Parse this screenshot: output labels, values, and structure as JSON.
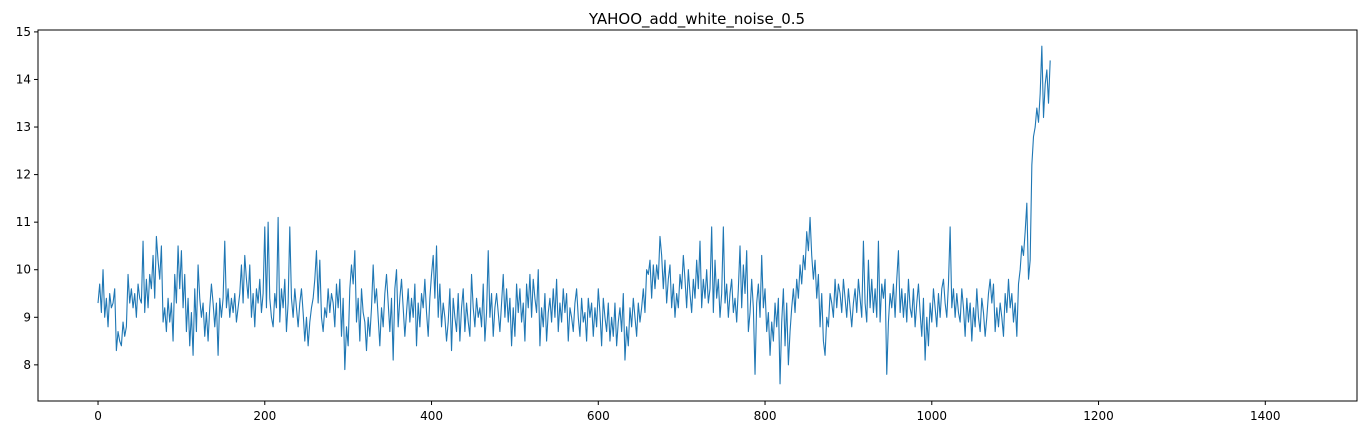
{
  "chart_data": {
    "type": "line",
    "title": "YAHOO_add_white_noise_0.5",
    "xlabel": "",
    "ylabel": "",
    "xlim": [
      -72,
      1510
    ],
    "ylim": [
      7.24,
      15.04
    ],
    "x_ticks": [
      0,
      200,
      400,
      600,
      800,
      1000,
      1200,
      1400
    ],
    "y_ticks": [
      8,
      9,
      10,
      11,
      12,
      13,
      14,
      15
    ],
    "grid": false,
    "legend": "none",
    "colors": {
      "line": "#1f77b4",
      "axes": "#000000",
      "background": "#ffffff"
    },
    "x_start": 0,
    "x_step": 2,
    "series": [
      {
        "values": [
          9.3,
          9.7,
          9.1,
          10.0,
          9.0,
          9.4,
          8.8,
          9.5,
          9.2,
          9.3,
          9.6,
          8.3,
          8.7,
          8.5,
          8.4,
          8.9,
          8.6,
          8.8,
          9.9,
          9.3,
          9.6,
          9.2,
          9.5,
          9.0,
          9.7,
          9.4,
          9.3,
          10.6,
          9.1,
          9.8,
          9.2,
          9.9,
          9.6,
          10.3,
          9.4,
          10.7,
          10.2,
          9.8,
          10.5,
          8.9,
          9.2,
          8.7,
          9.4,
          8.9,
          9.3,
          8.5,
          9.9,
          9.3,
          10.5,
          9.6,
          10.4,
          9.2,
          9.9,
          8.7,
          9.4,
          8.4,
          9.1,
          8.2,
          9.6,
          8.7,
          10.1,
          9.4,
          9.0,
          9.3,
          8.6,
          9.1,
          8.5,
          9.2,
          9.7,
          9.3,
          8.8,
          9.3,
          8.2,
          9.4,
          9.0,
          9.4,
          10.6,
          9.2,
          9.6,
          9.0,
          9.4,
          9.1,
          9.5,
          8.9,
          9.2,
          9.5,
          10.1,
          9.3,
          10.3,
          9.8,
          9.4,
          10.1,
          9.0,
          9.5,
          8.8,
          9.6,
          9.3,
          9.8,
          9.1,
          9.5,
          10.9,
          9.2,
          11.0,
          9.4,
          9.0,
          8.8,
          9.5,
          9.2,
          11.1,
          8.9,
          9.6,
          9.2,
          9.8,
          8.7,
          9.3,
          10.9,
          9.4,
          9.0,
          9.6,
          9.2,
          8.8,
          9.3,
          9.6,
          9.1,
          8.5,
          9.0,
          8.4,
          8.9,
          9.2,
          9.4,
          9.8,
          10.4,
          9.3,
          10.2,
          9.0,
          8.7,
          9.2,
          9.0,
          9.6,
          9.1,
          9.5,
          9.3,
          8.8,
          9.7,
          9.2,
          9.8,
          8.6,
          9.4,
          7.9,
          8.8,
          8.4,
          9.6,
          10.1,
          9.7,
          10.4,
          8.9,
          9.4,
          8.5,
          9.6,
          9.1,
          8.9,
          8.3,
          9.0,
          8.6,
          9.2,
          10.1,
          9.3,
          9.6,
          9.0,
          8.4,
          9.2,
          8.8,
          9.5,
          9.9,
          9.3,
          8.7,
          9.4,
          8.1,
          9.6,
          10.0,
          8.8,
          9.4,
          9.8,
          9.2,
          8.6,
          9.1,
          9.6,
          8.9,
          9.4,
          9.0,
          9.7,
          8.4,
          9.3,
          8.8,
          9.5,
          9.2,
          9.8,
          9.1,
          8.6,
          9.4,
          9.9,
          10.3,
          9.4,
          10.5,
          9.0,
          9.7,
          8.8,
          9.3,
          9.0,
          8.5,
          8.9,
          9.6,
          8.3,
          9.4,
          9.0,
          8.7,
          9.5,
          8.5,
          9.2,
          9.6,
          8.7,
          9.3,
          8.9,
          8.6,
          9.9,
          9.2,
          8.8,
          9.4,
          9.0,
          9.2,
          8.8,
          9.7,
          8.5,
          9.1,
          10.4,
          9.0,
          9.5,
          8.6,
          9.2,
          9.5,
          9.1,
          8.7,
          9.3,
          9.9,
          9.0,
          9.6,
          8.9,
          9.4,
          8.4,
          9.2,
          8.6,
          9.7,
          9.1,
          9.6,
          8.9,
          9.3,
          8.5,
          9.7,
          9.2,
          9.9,
          9.0,
          9.8,
          9.4,
          9.1,
          10.0,
          8.4,
          9.2,
          8.8,
          9.5,
          8.5,
          9.1,
          9.4,
          8.9,
          9.6,
          9.0,
          9.8,
          8.7,
          9.3,
          8.9,
          9.6,
          9.1,
          9.5,
          8.5,
          9.2,
          9.0,
          8.7,
          9.3,
          9.6,
          9.0,
          8.6,
          9.4,
          8.9,
          9.1,
          8.5,
          9.4,
          9.0,
          9.3,
          8.6,
          9.2,
          8.8,
          9.6,
          9.1,
          8.4,
          9.4,
          9.0,
          8.7,
          9.3,
          8.5,
          9.0,
          8.6,
          9.3,
          8.4,
          8.9,
          9.2,
          8.7,
          9.5,
          8.1,
          8.8,
          8.4,
          9.2,
          8.8,
          9.4,
          9.0,
          8.6,
          9.3,
          8.9,
          9.2,
          9.6,
          9.1,
          10.0,
          9.9,
          10.2,
          9.4,
          10.1,
          9.6,
          10.1,
          9.8,
          10.7,
          10.3,
          9.6,
          10.2,
          9.3,
          9.8,
          10.1,
          9.2,
          9.7,
          9.0,
          9.5,
          9.2,
          9.9,
          9.6,
          10.3,
          9.8,
          9.2,
          10.0,
          9.5,
          9.1,
          9.8,
          9.4,
          10.2,
          9.6,
          10.6,
          9.2,
          9.8,
          9.4,
          10.0,
          9.3,
          9.6,
          10.9,
          9.1,
          10.2,
          9.4,
          9.8,
          9.0,
          9.5,
          10.9,
          9.3,
          9.7,
          9.0,
          9.5,
          9.8,
          9.1,
          9.4,
          8.9,
          9.6,
          10.5,
          9.2,
          10.1,
          9.5,
          10.4,
          8.7,
          9.1,
          9.8,
          9.2,
          7.8,
          9.3,
          9.7,
          9.0,
          10.3,
          9.2,
          9.6,
          8.7,
          9.1,
          8.2,
          8.9,
          8.5,
          9.3,
          8.8,
          9.4,
          7.6,
          8.9,
          9.6,
          8.4,
          9.3,
          8.0,
          8.7,
          9.2,
          9.6,
          9.1,
          9.8,
          9.4,
          10.1,
          9.7,
          10.3,
          10.0,
          10.8,
          10.4,
          11.1,
          10.3,
          9.8,
          10.2,
          9.4,
          9.9,
          8.8,
          9.5,
          8.5,
          8.2,
          9.0,
          8.8,
          9.5,
          9.3,
          9.0,
          9.8,
          9.2,
          9.7,
          9.5,
          9.1,
          9.8,
          9.4,
          9.0,
          9.6,
          9.2,
          8.8,
          9.3,
          9.6,
          9.1,
          9.8,
          9.4,
          9.0,
          10.6,
          9.3,
          8.9,
          10.2,
          9.2,
          9.8,
          9.1,
          9.6,
          9.0,
          10.6,
          8.9,
          9.7,
          9.4,
          9.8,
          7.8,
          8.9,
          9.5,
          9.2,
          9.7,
          9.0,
          9.8,
          10.4,
          9.1,
          9.6,
          9.0,
          9.5,
          8.9,
          9.8,
          9.2,
          9.0,
          9.6,
          8.8,
          9.3,
          9.7,
          9.1,
          8.6,
          9.4,
          8.1,
          9.0,
          8.4,
          9.3,
          8.9,
          9.6,
          9.2,
          8.8,
          9.5,
          9.0,
          9.6,
          9.8,
          9.3,
          9.0,
          9.7,
          10.9,
          9.2,
          9.6,
          9.0,
          9.5,
          9.1,
          8.9,
          9.6,
          9.2,
          8.6,
          9.4,
          8.9,
          9.3,
          8.5,
          9.2,
          8.8,
          9.6,
          9.0,
          8.7,
          9.4,
          9.1,
          8.6,
          9.0,
          9.5,
          9.8,
          9.3,
          9.7,
          8.7,
          9.2,
          8.8,
          9.3,
          9.0,
          8.6,
          9.5,
          9.1,
          9.8,
          9.2,
          9.5,
          8.9,
          9.3,
          8.6,
          9.7,
          10.0,
          10.5,
          10.3,
          10.8,
          11.4,
          9.8,
          10.2,
          12.2,
          12.8,
          13.0,
          13.4,
          13.1,
          13.7,
          14.7,
          13.2,
          13.9,
          14.2,
          13.5,
          14.4
        ]
      }
    ]
  }
}
